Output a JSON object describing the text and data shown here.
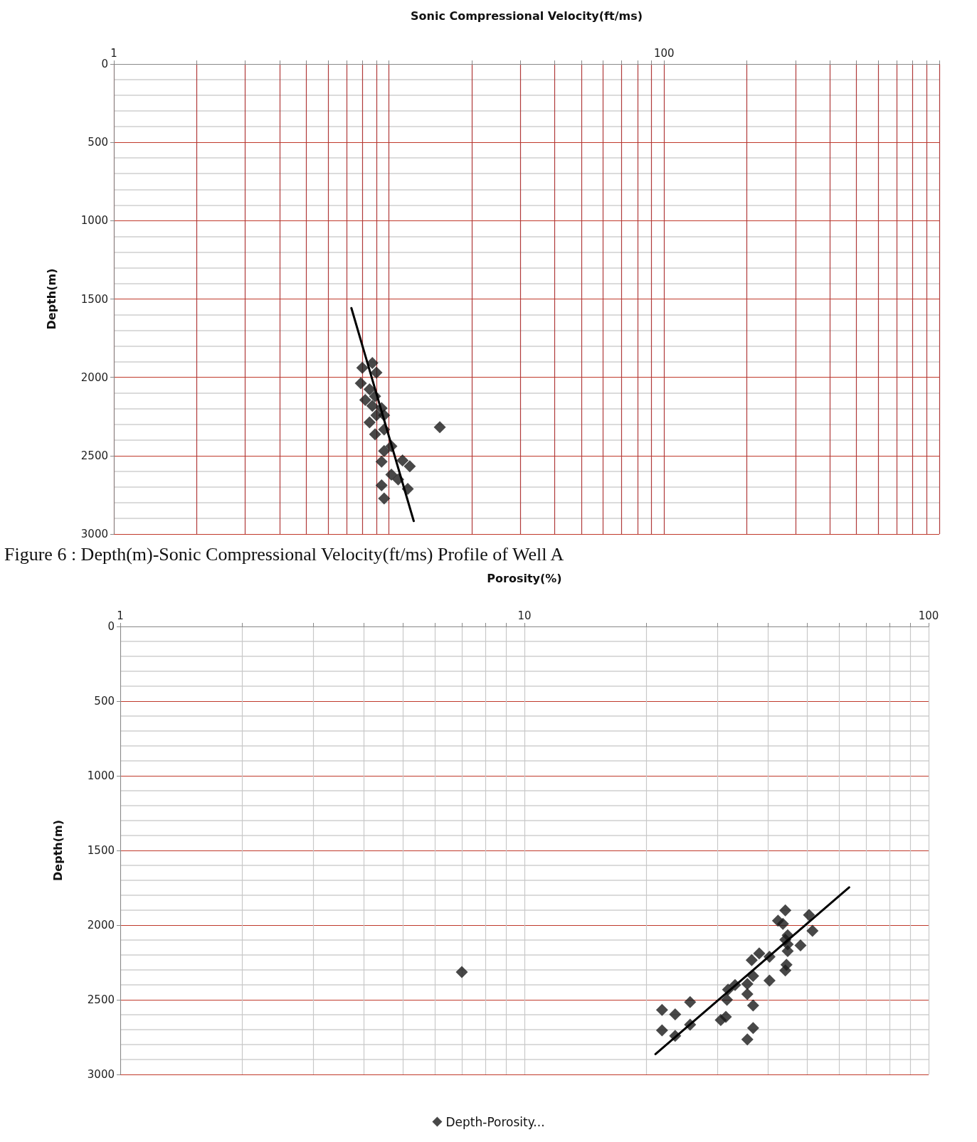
{
  "chart_data": [
    {
      "type": "scatter",
      "xlabel": "Sonic Compressional Velocity(ft/ms)",
      "ylabel": "Depth(m)",
      "log": "x",
      "grid": true,
      "marker": "diamond",
      "xlim": [
        1,
        1000
      ],
      "ylim": [
        3000,
        0
      ],
      "xticks": [
        1,
        {
          "value": 2,
          "label": null
        },
        {
          "value": 3,
          "label": null
        },
        {
          "value": 4,
          "label": null
        },
        {
          "value": 5,
          "label": null
        },
        {
          "value": 6,
          "label": null
        },
        {
          "value": 7,
          "label": null
        },
        {
          "value": 8,
          "label": null
        },
        {
          "value": 9,
          "label": null
        },
        {
          "value": 10,
          "label": null
        },
        {
          "value": 20,
          "label": null
        },
        {
          "value": 30,
          "label": null
        },
        {
          "value": 40,
          "label": null
        },
        {
          "value": 50,
          "label": null
        },
        {
          "value": 60,
          "label": null
        },
        {
          "value": 70,
          "label": null
        },
        {
          "value": 80,
          "label": null
        },
        {
          "value": 90,
          "label": null
        },
        100,
        {
          "value": 200,
          "label": null
        },
        {
          "value": 300,
          "label": null
        },
        {
          "value": 400,
          "label": null
        },
        {
          "value": 500,
          "label": null
        },
        {
          "value": 600,
          "label": null
        },
        {
          "value": 700,
          "label": null
        },
        {
          "value": 800,
          "label": null
        },
        {
          "value": 900,
          "label": null
        },
        {
          "value": 1000,
          "label": null
        }
      ],
      "yticks": [
        0,
        500,
        1000,
        1500,
        2000,
        2500,
        3000
      ],
      "series": [
        {
          "color": "#1a1a1a",
          "x": [
            8.0,
            8.7,
            9.0,
            7.9,
            8.5,
            8.9,
            8.2,
            8.7,
            9.4,
            9.0,
            8.5,
            9.6,
            8.9,
            9.6,
            10.2,
            9.6,
            9.4,
            11.2,
            11.9,
            10.2,
            10.8,
            11.7,
            9.4,
            9.6,
            15.3
          ],
          "values": [
            1939,
            1909,
            1970,
            2038,
            2076,
            2121,
            2144,
            2182,
            2197,
            2242,
            2288,
            2242,
            2364,
            2333,
            2439,
            2470,
            2538,
            2530,
            2568,
            2621,
            2652,
            2712,
            2689,
            2773,
            2318
          ]
        },
        {
          "type": "line",
          "marker": "none",
          "color": "#000000",
          "line_style": "solid",
          "x": [
            7.3,
            12.3
          ],
          "values": [
            1558,
            2917
          ]
        }
      ],
      "annotations": [
        "Figure 6 : Depth(m)-Sonic Compressional Velocity(ft/ms) Profile of Well A"
      ]
    },
    {
      "type": "scatter",
      "xlabel": "Porosity(%)",
      "ylabel": "Depth(m)",
      "log": "x",
      "grid": true,
      "marker": "diamond",
      "legend": "bottom",
      "xlim": [
        1,
        100
      ],
      "ylim": [
        3000,
        0
      ],
      "xticks": [
        1,
        {
          "value": 2,
          "label": null
        },
        {
          "value": 3,
          "label": null
        },
        {
          "value": 4,
          "label": null
        },
        {
          "value": 5,
          "label": null
        },
        {
          "value": 6,
          "label": null
        },
        {
          "value": 7,
          "label": null
        },
        {
          "value": 8,
          "label": null
        },
        {
          "value": 9,
          "label": null
        },
        10,
        {
          "value": 20,
          "label": null
        },
        {
          "value": 30,
          "label": null
        },
        {
          "value": 40,
          "label": null
        },
        {
          "value": 50,
          "label": null
        },
        {
          "value": 60,
          "label": null
        },
        {
          "value": 70,
          "label": null
        },
        {
          "value": 80,
          "label": null
        },
        {
          "value": 90,
          "label": null
        },
        100
      ],
      "yticks": [
        0,
        500,
        1000,
        1500,
        2000,
        2500,
        3000
      ],
      "series": [
        {
          "name": "Depth-Porosity...",
          "color": "#1a1a1a",
          "x": [
            44.2,
            50.6,
            42.4,
            43.6,
            51.6,
            44.8,
            44.2,
            44.8,
            48.2,
            44.8,
            38.1,
            40.4,
            36.5,
            44.5,
            44.2,
            36.8,
            40.4,
            35.6,
            31.9,
            33.2,
            35.6,
            31.7,
            25.7,
            36.8,
            21.9,
            23.6,
            31.5,
            30.6,
            25.7,
            21.9,
            23.6,
            36.8,
            35.6,
            7.0
          ],
          "values": [
            1901,
            1932,
            1970,
            1992,
            2038,
            2068,
            2098,
            2129,
            2136,
            2174,
            2189,
            2212,
            2235,
            2265,
            2303,
            2341,
            2371,
            2394,
            2432,
            2401,
            2462,
            2500,
            2515,
            2538,
            2568,
            2598,
            2614,
            2636,
            2667,
            2705,
            2742,
            2689,
            2765,
            2314
          ]
        },
        {
          "type": "line",
          "marker": "none",
          "color": "#000000",
          "line_style": "solid",
          "x": [
            21.1,
            63.6
          ],
          "values": [
            2864,
            1747
          ]
        }
      ]
    }
  ]
}
